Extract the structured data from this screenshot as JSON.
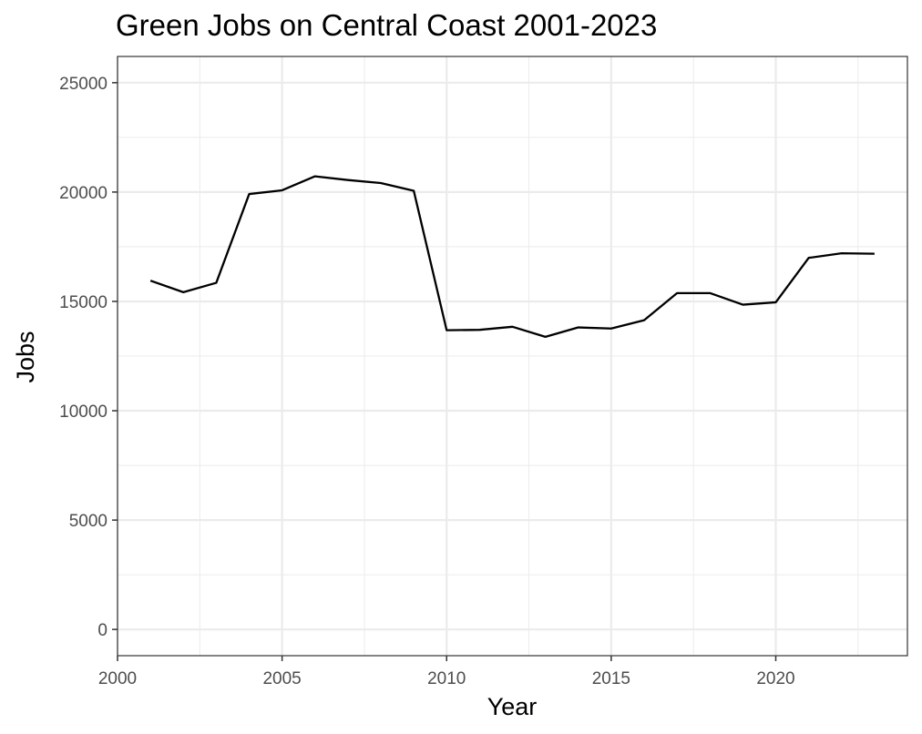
{
  "chart_data": {
    "type": "line",
    "title": "Green Jobs on Central Coast 2001-2023",
    "xlabel": "Year",
    "ylabel": "Jobs",
    "xlim": [
      2000,
      2024
    ],
    "ylim": [
      -1200,
      26200
    ],
    "x_ticks": [
      2000,
      2005,
      2010,
      2015,
      2020
    ],
    "y_ticks": [
      0,
      5000,
      10000,
      15000,
      20000,
      25000
    ],
    "grid": true,
    "legend": "none",
    "colors": {
      "line": "#000000",
      "grid": "#ebebeb",
      "panel_border": "#333333",
      "tick_label": "#4d4d4d"
    },
    "series": [
      {
        "x": [
          2001,
          2002,
          2003,
          2004,
          2005,
          2006,
          2007,
          2008,
          2009,
          2010,
          2011,
          2012,
          2013,
          2014,
          2015,
          2016,
          2017,
          2018,
          2019,
          2020,
          2021,
          2022,
          2023
        ],
        "values": [
          15950,
          15420,
          15850,
          19910,
          20080,
          20720,
          20550,
          20410,
          20060,
          13680,
          13700,
          13840,
          13380,
          13810,
          13760,
          14140,
          15380,
          15380,
          14850,
          14960,
          16990,
          17200,
          17180
        ]
      }
    ]
  }
}
